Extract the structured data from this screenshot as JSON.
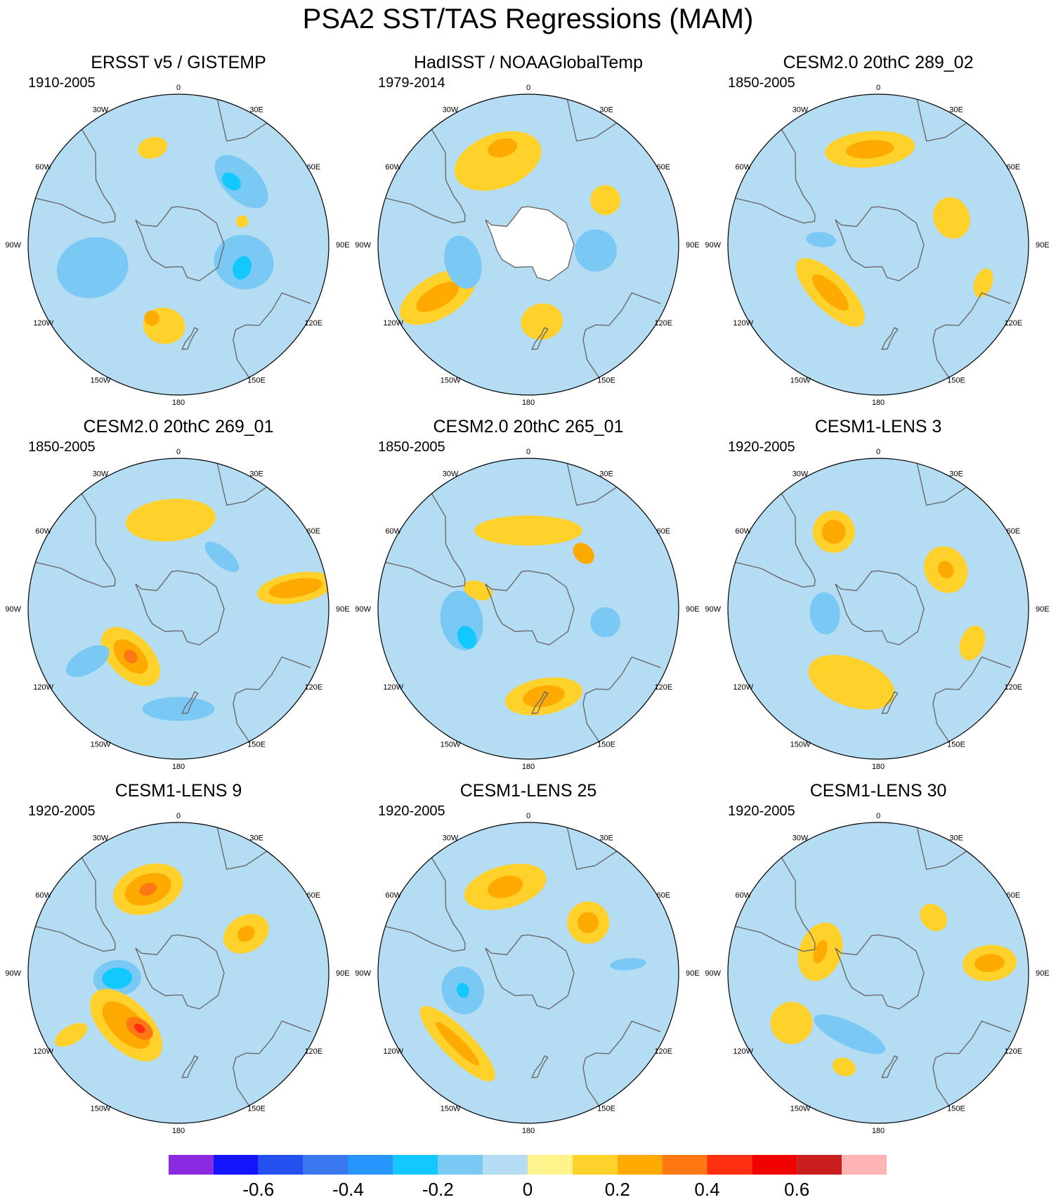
{
  "title": "PSA2 SST/TAS Regressions (MAM)",
  "longitude_labels": [
    "0",
    "30E",
    "60E",
    "90E",
    "120E",
    "150E",
    "180",
    "150W",
    "120W",
    "90W",
    "60W",
    "30W"
  ],
  "panels": [
    {
      "title": "ERSST v5 / GISTEMP",
      "period": "1910-2005",
      "blobs": [
        {
          "lon": 105,
          "lat": -55,
          "value": -0.15,
          "rx": 0.18,
          "ry": 0.2
        },
        {
          "lon": 110,
          "lat": -55,
          "value": -0.25,
          "rx": 0.08,
          "ry": 0.06
        },
        {
          "lon": 255,
          "lat": -45,
          "value": -0.15,
          "rx": 0.2,
          "ry": 0.24
        },
        {
          "lon": 45,
          "lat": -45,
          "value": -0.15,
          "rx": 0.22,
          "ry": 0.12
        },
        {
          "lon": 40,
          "lat": -48,
          "value": -0.25,
          "rx": 0.07,
          "ry": 0.05
        },
        {
          "lon": 345,
          "lat": -40,
          "value": 0.1,
          "rx": 0.1,
          "ry": 0.07
        },
        {
          "lon": 190,
          "lat": -48,
          "value": 0.1,
          "rx": 0.14,
          "ry": 0.12
        },
        {
          "lon": 200,
          "lat": -50,
          "value": 0.2,
          "rx": 0.05,
          "ry": 0.05
        },
        {
          "lon": 70,
          "lat": -55,
          "value": 0.1,
          "rx": 0.04,
          "ry": 0.04
        }
      ]
    },
    {
      "title": "HadISST / NOAAGlobalTemp",
      "period": "1979-2014",
      "blobs": [
        {
          "lon": 340,
          "lat": -45,
          "value": 0.1,
          "rx": 0.3,
          "ry": 0.18
        },
        {
          "lon": 345,
          "lat": -40,
          "value": 0.2,
          "rx": 0.1,
          "ry": 0.06
        },
        {
          "lon": 240,
          "lat": -38,
          "value": 0.1,
          "rx": 0.14,
          "ry": 0.28
        },
        {
          "lon": 240,
          "lat": -38,
          "value": 0.2,
          "rx": 0.07,
          "ry": 0.16
        },
        {
          "lon": 255,
          "lat": -55,
          "value": -0.15,
          "rx": 0.18,
          "ry": 0.12
        },
        {
          "lon": 95,
          "lat": -55,
          "value": -0.15,
          "rx": 0.14,
          "ry": 0.14
        },
        {
          "lon": 60,
          "lat": -45,
          "value": 0.1,
          "rx": 0.1,
          "ry": 0.1
        },
        {
          "lon": 170,
          "lat": -50,
          "value": 0.1,
          "rx": 0.14,
          "ry": 0.12
        }
      ]
    },
    {
      "title": "CESM2.0 20thC 289_02",
      "period": "1850-2005",
      "blobs": [
        {
          "lon": 355,
          "lat": -42,
          "value": 0.1,
          "rx": 0.3,
          "ry": 0.12
        },
        {
          "lon": 355,
          "lat": -42,
          "value": 0.2,
          "rx": 0.16,
          "ry": 0.06
        },
        {
          "lon": 225,
          "lat": -55,
          "value": 0.1,
          "rx": 0.3,
          "ry": 0.12
        },
        {
          "lon": 225,
          "lat": -55,
          "value": 0.2,
          "rx": 0.16,
          "ry": 0.06
        },
        {
          "lon": 70,
          "lat": -50,
          "value": 0.1,
          "rx": 0.14,
          "ry": 0.12
        },
        {
          "lon": 110,
          "lat": -35,
          "value": 0.1,
          "rx": 0.1,
          "ry": 0.06
        },
        {
          "lon": 275,
          "lat": -60,
          "value": -0.15,
          "rx": 0.05,
          "ry": 0.1
        }
      ]
    },
    {
      "title": "CESM2.0 20thC 269_01",
      "period": "1850-2005",
      "blobs": [
        {
          "lon": 355,
          "lat": -45,
          "value": 0.1,
          "rx": 0.3,
          "ry": 0.14
        },
        {
          "lon": 80,
          "lat": -32,
          "value": 0.1,
          "rx": 0.1,
          "ry": 0.26
        },
        {
          "lon": 80,
          "lat": -32,
          "value": 0.2,
          "rx": 0.06,
          "ry": 0.18
        },
        {
          "lon": 225,
          "lat": -55,
          "value": 0.1,
          "rx": 0.24,
          "ry": 0.14
        },
        {
          "lon": 225,
          "lat": -55,
          "value": 0.2,
          "rx": 0.14,
          "ry": 0.08
        },
        {
          "lon": 225,
          "lat": -55,
          "value": 0.3,
          "rx": 0.05,
          "ry": 0.04
        },
        {
          "lon": 40,
          "lat": -55,
          "value": -0.15,
          "rx": 0.14,
          "ry": 0.06
        },
        {
          "lon": 240,
          "lat": -38,
          "value": -0.15,
          "rx": 0.08,
          "ry": 0.16
        },
        {
          "lon": 180,
          "lat": -40,
          "value": -0.15,
          "rx": 0.24,
          "ry": 0.08
        }
      ]
    },
    {
      "title": "CESM2.0 20thC 265_01",
      "period": "1850-2005",
      "blobs": [
        {
          "lon": 0,
          "lat": -50,
          "value": 0.1,
          "rx": 0.36,
          "ry": 0.1
        },
        {
          "lon": 45,
          "lat": -50,
          "value": 0.2,
          "rx": 0.08,
          "ry": 0.06
        },
        {
          "lon": 260,
          "lat": -55,
          "value": -0.15,
          "rx": 0.2,
          "ry": 0.14
        },
        {
          "lon": 245,
          "lat": -55,
          "value": -0.25,
          "rx": 0.08,
          "ry": 0.06
        },
        {
          "lon": 170,
          "lat": -45,
          "value": 0.1,
          "rx": 0.26,
          "ry": 0.12
        },
        {
          "lon": 170,
          "lat": -45,
          "value": 0.2,
          "rx": 0.14,
          "ry": 0.07
        },
        {
          "lon": 100,
          "lat": -50,
          "value": -0.15,
          "rx": 0.1,
          "ry": 0.1
        },
        {
          "lon": 290,
          "lat": -62,
          "value": 0.1,
          "rx": 0.06,
          "ry": 0.1
        }
      ]
    },
    {
      "title": "CESM1-LENS 3",
      "period": "1920-2005",
      "blobs": [
        {
          "lon": 330,
          "lat": -45,
          "value": 0.1,
          "rx": 0.14,
          "ry": 0.14
        },
        {
          "lon": 330,
          "lat": -45,
          "value": 0.2,
          "rx": 0.08,
          "ry": 0.08
        },
        {
          "lon": 60,
          "lat": -50,
          "value": 0.1,
          "rx": 0.16,
          "ry": 0.14
        },
        {
          "lon": 60,
          "lat": -50,
          "value": 0.2,
          "rx": 0.06,
          "ry": 0.05
        },
        {
          "lon": 265,
          "lat": -62,
          "value": -0.15,
          "rx": 0.14,
          "ry": 0.1
        },
        {
          "lon": 200,
          "lat": -50,
          "value": 0.1,
          "rx": 0.3,
          "ry": 0.16
        },
        {
          "lon": 110,
          "lat": -40,
          "value": 0.1,
          "rx": 0.12,
          "ry": 0.08
        }
      ]
    },
    {
      "title": "CESM1-LENS 9",
      "period": "1920-2005",
      "blobs": [
        {
          "lon": 340,
          "lat": -45,
          "value": 0.1,
          "rx": 0.24,
          "ry": 0.16
        },
        {
          "lon": 340,
          "lat": -45,
          "value": 0.2,
          "rx": 0.16,
          "ry": 0.1
        },
        {
          "lon": 340,
          "lat": -45,
          "value": 0.3,
          "rx": 0.06,
          "ry": 0.04
        },
        {
          "lon": 60,
          "lat": -50,
          "value": 0.1,
          "rx": 0.12,
          "ry": 0.16
        },
        {
          "lon": 60,
          "lat": -50,
          "value": 0.2,
          "rx": 0.05,
          "ry": 0.06
        },
        {
          "lon": 265,
          "lat": -58,
          "value": -0.15,
          "rx": 0.12,
          "ry": 0.16
        },
        {
          "lon": 265,
          "lat": -58,
          "value": -0.25,
          "rx": 0.07,
          "ry": 0.1
        },
        {
          "lon": 225,
          "lat": -52,
          "value": 0.1,
          "rx": 0.3,
          "ry": 0.16
        },
        {
          "lon": 225,
          "lat": -52,
          "value": 0.2,
          "rx": 0.2,
          "ry": 0.1
        },
        {
          "lon": 215,
          "lat": -55,
          "value": 0.3,
          "rx": 0.1,
          "ry": 0.06
        },
        {
          "lon": 215,
          "lat": -55,
          "value": 0.4,
          "rx": 0.04,
          "ry": 0.025
        },
        {
          "lon": 240,
          "lat": -30,
          "value": 0.1,
          "rx": 0.06,
          "ry": 0.12
        }
      ]
    },
    {
      "title": "CESM1-LENS 25",
      "period": "1920-2005",
      "blobs": [
        {
          "lon": 345,
          "lat": -45,
          "value": 0.1,
          "rx": 0.28,
          "ry": 0.14
        },
        {
          "lon": 345,
          "lat": -45,
          "value": 0.2,
          "rx": 0.12,
          "ry": 0.07
        },
        {
          "lon": 50,
          "lat": -50,
          "value": 0.1,
          "rx": 0.14,
          "ry": 0.14
        },
        {
          "lon": 50,
          "lat": -50,
          "value": 0.2,
          "rx": 0.07,
          "ry": 0.07
        },
        {
          "lon": 255,
          "lat": -55,
          "value": -0.15,
          "rx": 0.16,
          "ry": 0.14
        },
        {
          "lon": 255,
          "lat": -55,
          "value": -0.25,
          "rx": 0.05,
          "ry": 0.04
        },
        {
          "lon": 225,
          "lat": -40,
          "value": 0.1,
          "rx": 0.34,
          "ry": 0.1
        },
        {
          "lon": 225,
          "lat": -40,
          "value": 0.2,
          "rx": 0.2,
          "ry": 0.04
        },
        {
          "lon": 85,
          "lat": -40,
          "value": -0.15,
          "rx": 0.04,
          "ry": 0.12
        }
      ]
    },
    {
      "title": "CESM1-LENS 30",
      "period": "1920-2005",
      "blobs": [
        {
          "lon": 290,
          "lat": -58,
          "value": 0.1,
          "rx": 0.2,
          "ry": 0.14
        },
        {
          "lon": 290,
          "lat": -58,
          "value": 0.2,
          "rx": 0.08,
          "ry": 0.04
        },
        {
          "lon": 85,
          "lat": -35,
          "value": 0.1,
          "rx": 0.12,
          "ry": 0.18
        },
        {
          "lon": 85,
          "lat": -35,
          "value": 0.2,
          "rx": 0.06,
          "ry": 0.1
        },
        {
          "lon": 205,
          "lat": -55,
          "value": -0.15,
          "rx": 0.26,
          "ry": 0.08
        },
        {
          "lon": 45,
          "lat": -50,
          "value": 0.1,
          "rx": 0.1,
          "ry": 0.08
        },
        {
          "lon": 240,
          "lat": -40,
          "value": 0.1,
          "rx": 0.14,
          "ry": 0.14
        },
        {
          "lon": 200,
          "lat": -40,
          "value": 0.1,
          "rx": 0.08,
          "ry": 0.06
        }
      ]
    }
  ],
  "colorbar": {
    "colors": [
      "#8a2be2",
      "#1414ff",
      "#2450f0",
      "#3a78f0",
      "#2896ff",
      "#12c8ff",
      "#7ac8f4",
      "#b4dcf2",
      "#fff48c",
      "#ffd12a",
      "#ffaa00",
      "#ff7814",
      "#ff3012",
      "#f00000",
      "#c81e1e",
      "#ffb4b4"
    ],
    "ticks": [
      {
        "value": -0.6,
        "label": "-0.6"
      },
      {
        "value": -0.4,
        "label": "-0.4"
      },
      {
        "value": -0.2,
        "label": "-0.2"
      },
      {
        "value": 0,
        "label": "0"
      },
      {
        "value": 0.2,
        "label": "0.2"
      },
      {
        "value": 0.4,
        "label": "0.4"
      },
      {
        "value": 0.6,
        "label": "0.6"
      }
    ],
    "min": -0.8,
    "max": 0.8
  },
  "colors": {
    "land": "#ffffff",
    "coast": "#6a6a6a",
    "ocean_base": "#b4dcf2",
    "outline": "#000000"
  }
}
